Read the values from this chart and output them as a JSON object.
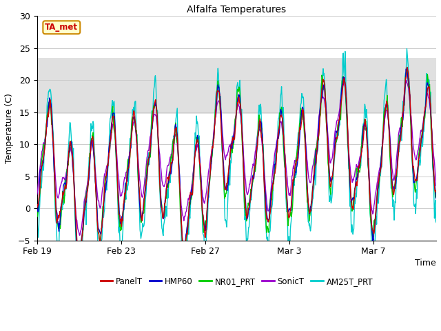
{
  "title": "Alfalfa Temperatures",
  "xlabel": "Time",
  "ylabel": "Temperature (C)",
  "ylim": [
    -5,
    30
  ],
  "yticks": [
    -5,
    0,
    5,
    10,
    15,
    20,
    25,
    30
  ],
  "x_tick_labels": [
    "Feb 19",
    "Feb 23",
    "Feb 27",
    "Mar 3",
    "Mar 7"
  ],
  "x_tick_positions": [
    0,
    4,
    8,
    12,
    16
  ],
  "shade_ymin": 14.8,
  "shade_ymax": 23.5,
  "series_colors": {
    "PanelT": "#cc0000",
    "HMP60": "#0000cc",
    "NR01_PRT": "#00cc00",
    "SonicT": "#9900cc",
    "AM25T_PRT": "#00cccc"
  },
  "ta_met_label": "TA_met",
  "ta_met_bg": "#ffffcc",
  "ta_met_border": "#cc8800",
  "ta_met_text_color": "#cc0000",
  "grid_color": "#cccccc",
  "shade_color": "#e0e0e0",
  "plot_bg": "#ffffff",
  "n_days": 19,
  "seed": 7
}
